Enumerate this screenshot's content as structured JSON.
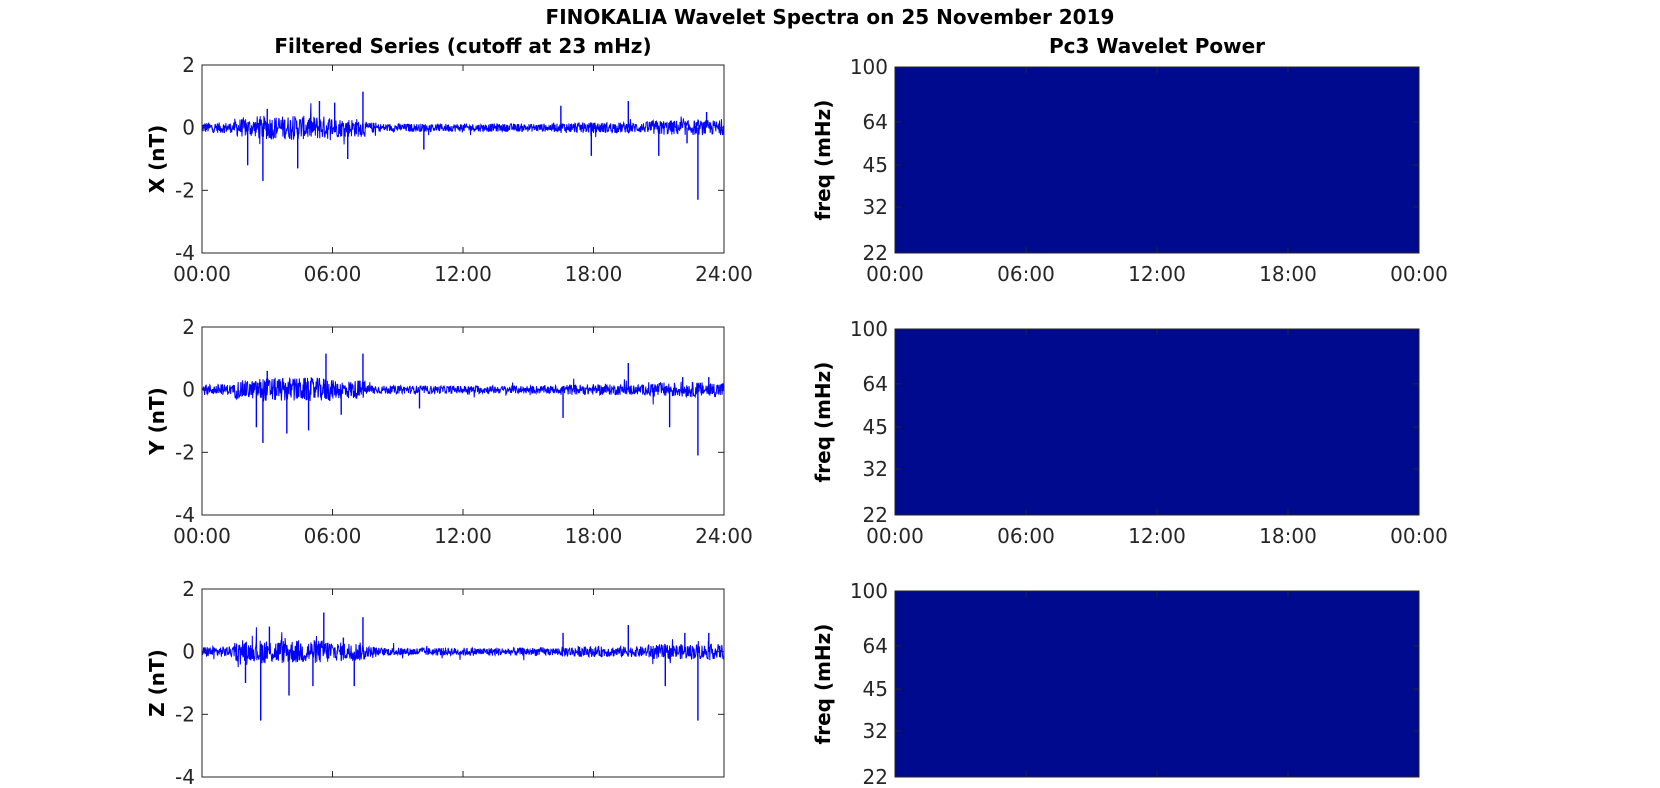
{
  "figure": {
    "title": "FINOKALIA Wavelet Spectra on 25 November 2019",
    "left_title": "Filtered Series (cutoff at 23 mHz)",
    "right_title": "Pc3 Wavelet Power"
  },
  "colors": {
    "series": "#0000ff",
    "spectrum": "#000a8f",
    "axis": "#262626"
  },
  "chart_data": [
    {
      "type": "line",
      "name": "filtered-x",
      "ylabel": "X (nT)",
      "ylim": [
        -4,
        2
      ],
      "yticks": [
        2,
        0,
        -2,
        -4
      ],
      "yticklabels": [
        "2",
        "0",
        "-2",
        "-4"
      ],
      "xlim": [
        0,
        24
      ],
      "xticks": [
        0,
        6,
        12,
        18,
        24
      ],
      "xticklabels": [
        "00:00",
        "06:00",
        "12:00",
        "18:00",
        "24:00"
      ],
      "series": [
        {
          "spikes": [
            [
              2.1,
              -1.2
            ],
            [
              2.8,
              -1.7
            ],
            [
              3.0,
              0.6
            ],
            [
              4.4,
              -1.3
            ],
            [
              5.4,
              0.85
            ],
            [
              6.1,
              0.8
            ],
            [
              6.7,
              -1.0
            ],
            [
              7.4,
              1.15
            ],
            [
              10.2,
              -0.7
            ],
            [
              16.5,
              0.7
            ],
            [
              17.9,
              -0.9
            ],
            [
              19.6,
              0.85
            ],
            [
              21.0,
              -0.9
            ],
            [
              22.3,
              -0.5
            ],
            [
              22.8,
              -2.3
            ],
            [
              23.2,
              0.5
            ]
          ]
        }
      ]
    },
    {
      "type": "line",
      "name": "filtered-y",
      "ylabel": "Y (nT)",
      "ylim": [
        -4,
        2
      ],
      "yticks": [
        2,
        0,
        -2,
        -4
      ],
      "yticklabels": [
        "2",
        "0",
        "-2",
        "-4"
      ],
      "xlim": [
        0,
        24
      ],
      "xticks": [
        0,
        6,
        12,
        18,
        24
      ],
      "xticklabels": [
        "00:00",
        "06:00",
        "12:00",
        "18:00",
        "24:00"
      ],
      "series": [
        {
          "spikes": [
            [
              2.5,
              -1.2
            ],
            [
              2.8,
              -1.7
            ],
            [
              3.0,
              0.6
            ],
            [
              3.9,
              -1.4
            ],
            [
              4.9,
              -1.3
            ],
            [
              5.7,
              1.15
            ],
            [
              6.4,
              -0.8
            ],
            [
              7.4,
              1.15
            ],
            [
              10.0,
              -0.6
            ],
            [
              16.6,
              -0.9
            ],
            [
              19.6,
              0.85
            ],
            [
              21.5,
              -1.2
            ],
            [
              22.1,
              0.4
            ],
            [
              22.8,
              -2.1
            ],
            [
              23.3,
              0.4
            ]
          ]
        }
      ]
    },
    {
      "type": "line",
      "name": "filtered-z",
      "ylabel": "Z (nT)",
      "ylim": [
        -4,
        2
      ],
      "yticks": [
        2,
        0,
        -2,
        -4
      ],
      "yticklabels": [
        "2",
        "0",
        "-2",
        "-4"
      ],
      "xlim": [
        0,
        24
      ],
      "xticks": [
        0,
        6,
        12,
        18,
        24
      ],
      "xticklabels": [],
      "series": [
        {
          "spikes": [
            [
              2.0,
              -1.0
            ],
            [
              2.7,
              -2.2
            ],
            [
              3.1,
              0.8
            ],
            [
              4.0,
              -1.4
            ],
            [
              5.1,
              -1.1
            ],
            [
              5.6,
              1.25
            ],
            [
              6.5,
              0.45
            ],
            [
              7.0,
              -1.1
            ],
            [
              7.4,
              1.1
            ],
            [
              16.6,
              0.6
            ],
            [
              19.6,
              0.85
            ],
            [
              21.3,
              -1.1
            ],
            [
              22.2,
              0.6
            ],
            [
              22.8,
              -2.2
            ],
            [
              23.3,
              0.6
            ]
          ]
        }
      ]
    },
    {
      "type": "heatmap",
      "name": "power-x",
      "ylabel": "freq (mHz)",
      "yscale": "log",
      "ylim": [
        22,
        100
      ],
      "yticks": [
        100,
        64,
        45,
        32,
        22
      ],
      "yticklabels": [
        "100",
        "64",
        "45",
        "32",
        "22"
      ],
      "xlim": [
        0,
        24
      ],
      "xticks": [
        0,
        6,
        12,
        18,
        24
      ],
      "xticklabels": [
        "00:00",
        "06:00",
        "12:00",
        "18:00",
        "00:00"
      ]
    },
    {
      "type": "heatmap",
      "name": "power-y",
      "ylabel": "freq (mHz)",
      "yscale": "log",
      "ylim": [
        22,
        100
      ],
      "yticks": [
        100,
        64,
        45,
        32,
        22
      ],
      "yticklabels": [
        "100",
        "64",
        "45",
        "32",
        "22"
      ],
      "xlim": [
        0,
        24
      ],
      "xticks": [
        0,
        6,
        12,
        18,
        24
      ],
      "xticklabels": [
        "00:00",
        "06:00",
        "12:00",
        "18:00",
        "00:00"
      ]
    },
    {
      "type": "heatmap",
      "name": "power-z",
      "ylabel": "freq (mHz)",
      "yscale": "log",
      "ylim": [
        22,
        100
      ],
      "yticks": [
        100,
        64,
        45,
        32,
        22
      ],
      "yticklabels": [
        "100",
        "64",
        "45",
        "32",
        "22"
      ],
      "xlim": [
        0,
        24
      ],
      "xticks": [
        0,
        6,
        12,
        18,
        24
      ],
      "xticklabels": []
    }
  ]
}
